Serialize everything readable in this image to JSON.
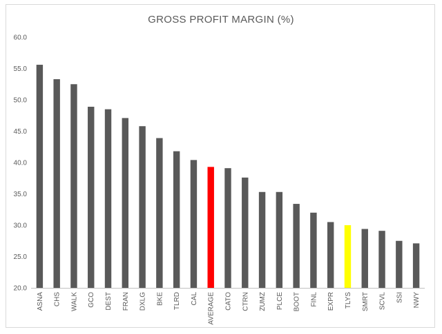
{
  "chart_data": {
    "type": "bar",
    "title": "GROSS PROFIT MARGIN (%)",
    "xlabel": "",
    "ylabel": "",
    "ylim": [
      20.0,
      60.0
    ],
    "ytick_step": 5,
    "ytick_labels": [
      "20.0",
      "25.0",
      "30.0",
      "35.0",
      "40.0",
      "45.0",
      "50.0",
      "55.0",
      "60.0"
    ],
    "grid": false,
    "legend": "none",
    "categories": [
      "ASNA",
      "CHS",
      "WALK",
      "GCO",
      "DEST",
      "FRAN",
      "DXLG",
      "BKE",
      "TLRD",
      "CAL",
      "AVERAGE",
      "CATO",
      "CTRN",
      "ZUMZ",
      "PLCE",
      "BOOT",
      "FINL",
      "EXPR",
      "TLYS",
      "SMRT",
      "SCVL",
      "SSI",
      "NWY"
    ],
    "values": [
      55.6,
      53.3,
      52.5,
      48.9,
      48.5,
      47.1,
      45.8,
      43.9,
      41.8,
      40.4,
      39.3,
      39.1,
      37.6,
      35.3,
      35.3,
      33.4,
      32.0,
      30.5,
      30.0,
      29.4,
      29.1,
      27.5,
      27.1
    ],
    "colors": {
      "default": "#595959",
      "highlights": {
        "AVERAGE": "#ff0000",
        "TLYS": "#ffff00"
      },
      "axis": "#bfbfbf",
      "text": "#595959"
    }
  }
}
